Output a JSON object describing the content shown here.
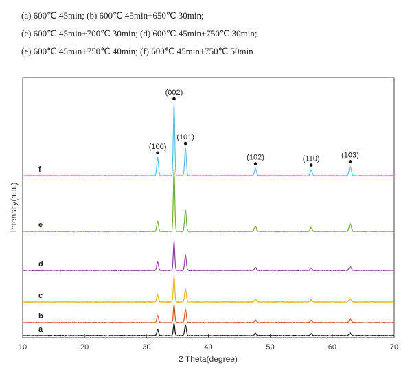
{
  "caption": {
    "line1": "(a) 600℃  45min; (b) 600℃  45min+650℃  30min;",
    "line2": "(c) 600℃  45min+700℃  30min; (d) 600℃  45min+750℃  30min;",
    "line3": "(e) 600℃  45min+750℃  40min; (f) 600℃  45min+750℃  50min"
  },
  "chart_data": {
    "type": "line",
    "xlabel": "2 Theta(degree)",
    "ylabel": "Intensity(a.u.)",
    "xlim": [
      10,
      70
    ],
    "xticks": [
      10,
      20,
      30,
      40,
      50,
      60,
      70
    ],
    "grid": false,
    "peaks": [
      {
        "label": "(100)",
        "x": 31.8
      },
      {
        "label": "(002)",
        "x": 34.45
      },
      {
        "label": "(101)",
        "x": 36.3
      },
      {
        "label": "(102)",
        "x": 47.6
      },
      {
        "label": "(110)",
        "x": 56.6
      },
      {
        "label": "(103)",
        "x": 62.9
      }
    ],
    "series": [
      {
        "name": "a",
        "color": "#1a1a1a",
        "relative_intensities": [
          0.5,
          1.0,
          0.85,
          0.18,
          0.15,
          0.2
        ]
      },
      {
        "name": "b",
        "color": "#d2552a",
        "relative_intensities": [
          0.4,
          1.0,
          0.75,
          0.15,
          0.12,
          0.2
        ]
      },
      {
        "name": "c",
        "color": "#e8b324",
        "relative_intensities": [
          0.28,
          1.0,
          0.5,
          0.1,
          0.08,
          0.12
        ]
      },
      {
        "name": "d",
        "color": "#8e3fa0",
        "relative_intensities": [
          0.3,
          1.0,
          0.53,
          0.1,
          0.08,
          0.13
        ]
      },
      {
        "name": "e",
        "color": "#76ac3a",
        "relative_intensities": [
          0.16,
          1.0,
          0.34,
          0.08,
          0.06,
          0.12
        ]
      },
      {
        "name": "f",
        "color": "#5bbfe4",
        "relative_intensities": [
          0.25,
          1.0,
          0.38,
          0.1,
          0.08,
          0.13
        ]
      }
    ]
  }
}
